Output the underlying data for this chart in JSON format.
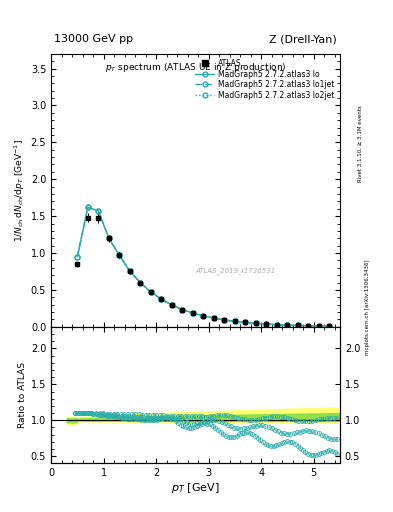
{
  "title_left": "13000 GeV pp",
  "title_right": "Z (Drell-Yan)",
  "plot_title": "p_{T} spectrum (ATLAS UE in Z production)",
  "xlabel": "p_{T} [GeV]",
  "ylabel_main": "1/N_{ch} dN_{ch}/dp_{T} [GeV^{-1}]",
  "ylabel_ratio": "Ratio to ATLAS",
  "right_label_top": "Rivet 3.1.10, ≥ 3.1M events",
  "right_label_bottom": "mcplots.cern.ch [arXiv:1306.3436]",
  "watermark": "ATLAS_2019_I1736531",
  "main_xlim": [
    0,
    5.5
  ],
  "main_ylim": [
    0,
    3.7
  ],
  "ratio_xlim": [
    0,
    5.5
  ],
  "ratio_ylim": [
    0.4,
    2.3
  ],
  "teal": "#2aacac",
  "color_yellow": "#ffff66",
  "color_green": "#88dd44"
}
